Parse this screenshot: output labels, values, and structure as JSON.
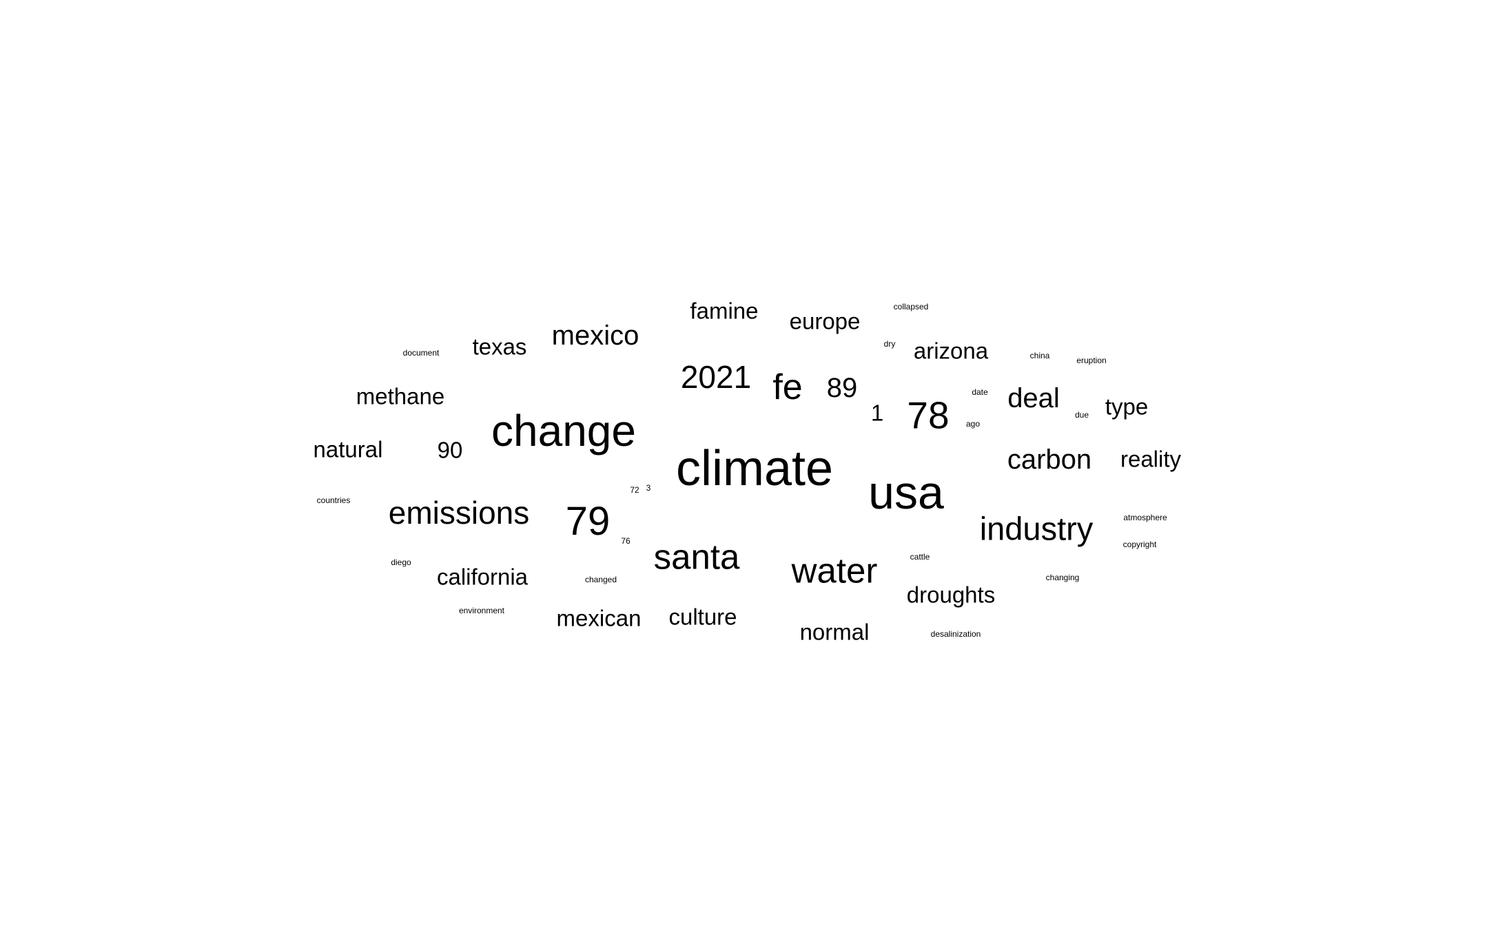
{
  "words": [
    {
      "text": "climate",
      "size": 72
    },
    {
      "text": "usa",
      "size": 68
    },
    {
      "text": "change",
      "size": 64
    },
    {
      "text": "79",
      "size": 58
    },
    {
      "text": "78",
      "size": 55
    },
    {
      "text": "fe",
      "size": 52
    },
    {
      "text": "santa",
      "size": 51
    },
    {
      "text": "water",
      "size": 51
    },
    {
      "text": "industry",
      "size": 47
    },
    {
      "text": "emissions",
      "size": 46
    },
    {
      "text": "2021",
      "size": 46
    },
    {
      "text": "carbon",
      "size": 40
    },
    {
      "text": "mexico",
      "size": 40
    },
    {
      "text": "deal",
      "size": 40
    },
    {
      "text": "89",
      "size": 40
    },
    {
      "text": "droughts",
      "size": 33
    },
    {
      "text": "culture",
      "size": 33
    },
    {
      "text": "normal",
      "size": 33
    },
    {
      "text": "mexican",
      "size": 33
    },
    {
      "text": "california",
      "size": 33
    },
    {
      "text": "reality",
      "size": 33
    },
    {
      "text": "type",
      "size": 33
    },
    {
      "text": "arizona",
      "size": 33
    },
    {
      "text": "europe",
      "size": 33
    },
    {
      "text": "famine",
      "size": 33
    },
    {
      "text": "texas",
      "size": 33
    },
    {
      "text": "methane",
      "size": 33
    },
    {
      "text": "natural",
      "size": 33
    },
    {
      "text": "90",
      "size": 33
    },
    {
      "text": "1",
      "size": 33
    },
    {
      "text": "collapsed",
      "size": 12
    },
    {
      "text": "document",
      "size": 12
    },
    {
      "text": "dry",
      "size": 12
    },
    {
      "text": "china",
      "size": 12
    },
    {
      "text": "eruption",
      "size": 12
    },
    {
      "text": "date",
      "size": 12
    },
    {
      "text": "due",
      "size": 12
    },
    {
      "text": "ago",
      "size": 12
    },
    {
      "text": "countries",
      "size": 12
    },
    {
      "text": "72",
      "size": 12
    },
    {
      "text": "3",
      "size": 12
    },
    {
      "text": "atmosphere",
      "size": 12
    },
    {
      "text": "76",
      "size": 12
    },
    {
      "text": "copyright",
      "size": 12
    },
    {
      "text": "cattle",
      "size": 12
    },
    {
      "text": "diego",
      "size": 12
    },
    {
      "text": "changing",
      "size": 12
    },
    {
      "text": "changed",
      "size": 12
    },
    {
      "text": "environment",
      "size": 12
    },
    {
      "text": "desalinization",
      "size": 12
    }
  ]
}
